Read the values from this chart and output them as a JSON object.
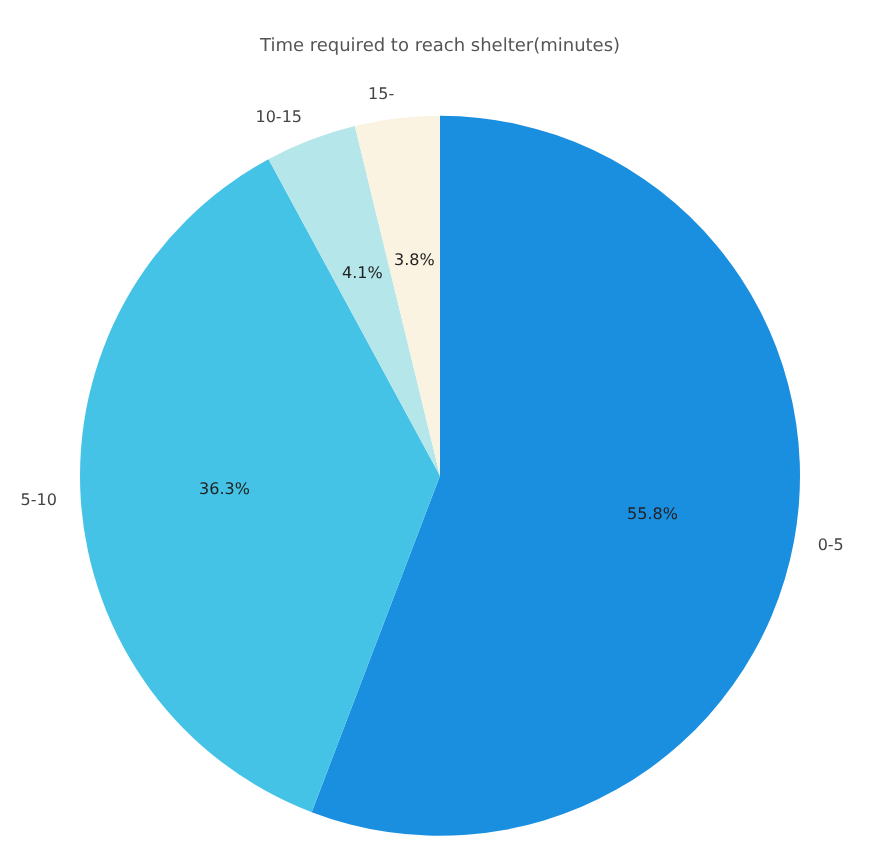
{
  "chart_data": {
    "type": "pie",
    "title": "Time required to reach shelter(minutes)",
    "categories": [
      "0-5",
      "5-10",
      "10-15",
      "15-"
    ],
    "values": [
      55.8,
      36.3,
      4.1,
      3.8
    ],
    "colors": [
      "#1a8fe0",
      "#45c3e6",
      "#b5e6ea",
      "#fbf3e2"
    ],
    "value_labels": [
      "55.8%",
      "36.3%",
      "4.1%",
      "3.8%"
    ],
    "legend": false
  }
}
